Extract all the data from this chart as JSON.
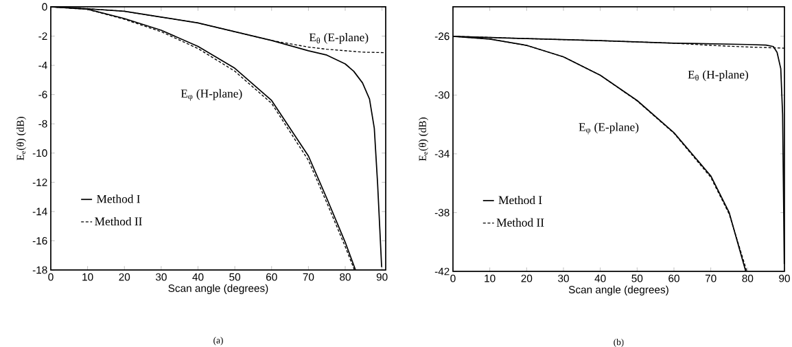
{
  "chart_data": [
    {
      "type": "line",
      "xlabel": "Scan angle (degrees)",
      "ylabel": "E$_{e}$(θ) (dB)",
      "xlim": [
        0,
        91
      ],
      "ylim": [
        -18,
        0
      ],
      "xticks": [
        0,
        10,
        20,
        30,
        40,
        50,
        60,
        70,
        80,
        90
      ],
      "yticks": [
        0,
        -2,
        -4,
        -6,
        -8,
        -10,
        -12,
        -14,
        -16,
        -18
      ],
      "grid": false,
      "legend": "bottom left",
      "marker": "none",
      "series": [
        {
          "name": "Method I",
          "color": "#000000",
          "line_style": "solid",
          "x": [
            0,
            10,
            20,
            30,
            40,
            50,
            60,
            70,
            75,
            80,
            82.3,
            84.7,
            86.6,
            87.9,
            88.8,
            89.4,
            89.9
          ],
          "values": [
            0,
            -0.13,
            -0.3,
            -0.7,
            -1.1,
            -1.7,
            -2.3,
            -3.0,
            -3.3,
            -3.9,
            -4.4,
            -5.2,
            -6.3,
            -8.3,
            -12.1,
            -15.2,
            -17.8
          ]
        },
        {
          "name": "Method II",
          "color": "#000000",
          "line_style": "dashed",
          "x": [
            0,
            10,
            20,
            30,
            40,
            50,
            60,
            70,
            75,
            80,
            85,
            90.8
          ],
          "values": [
            0,
            -0.13,
            -0.3,
            -0.7,
            -1.1,
            -1.7,
            -2.3,
            -2.75,
            -2.9,
            -3.0,
            -3.1,
            -3.13
          ]
        },
        {
          "color": "#000000",
          "line_style": "solid",
          "x": [
            0,
            10,
            20,
            30,
            40,
            50,
            60,
            70,
            75,
            80,
            82.8
          ],
          "values": [
            0,
            -0.16,
            -0.8,
            -1.6,
            -2.7,
            -4.2,
            -6.4,
            -10.2,
            -13.1,
            -16.1,
            -18
          ]
        },
        {
          "color": "#000000",
          "line_style": "dashed",
          "x": [
            0,
            10,
            20,
            30,
            40,
            50,
            60,
            70,
            75,
            80,
            82.5
          ],
          "values": [
            0,
            -0.17,
            -0.85,
            -1.7,
            -2.85,
            -4.4,
            -6.6,
            -10.5,
            -13.4,
            -16.4,
            -18
          ]
        }
      ],
      "annotations": [
        "E$_{θ}$ (E-plane)",
        "E$_{φ}$ (H-plane)",
        "(a)"
      ]
    },
    {
      "type": "line",
      "xlabel": "Scan angle (degrees)",
      "ylabel": "E$_{e}$(θ) (dB)",
      "xlim": [
        0,
        90
      ],
      "ylim": [
        -42,
        -24
      ],
      "xticks": [
        0,
        10,
        20,
        30,
        40,
        50,
        60,
        70,
        80,
        90
      ],
      "yticks": [
        -26,
        -30,
        -34,
        -38,
        -42
      ],
      "grid": false,
      "legend": "bottom left",
      "marker": "none",
      "series": [
        {
          "name": "Method I",
          "color": "#000000",
          "line_style": "solid",
          "x": [
            0,
            20,
            40,
            60,
            80,
            85,
            87,
            88,
            89,
            89.5,
            89.8,
            89.95
          ],
          "values": [
            -26,
            -26.16,
            -26.3,
            -26.47,
            -26.56,
            -26.6,
            -26.7,
            -27.1,
            -28.2,
            -31.3,
            -38,
            -41.5
          ]
        },
        {
          "name": "Method II",
          "color": "#000000",
          "line_style": "dashed",
          "x": [
            0,
            20,
            40,
            60,
            70,
            80,
            90
          ],
          "values": [
            -26,
            -26.16,
            -26.3,
            -26.47,
            -26.62,
            -26.73,
            -26.81
          ]
        },
        {
          "color": "#000000",
          "line_style": "solid",
          "x": [
            0,
            10,
            20,
            30,
            40,
            50,
            60,
            70,
            75,
            79.5
          ],
          "values": [
            -26,
            -26.19,
            -26.62,
            -27.4,
            -28.65,
            -30.37,
            -32.56,
            -35.5,
            -38.0,
            -42
          ]
        },
        {
          "color": "#000000",
          "line_style": "dashed",
          "x": [
            0,
            10,
            20,
            30,
            40,
            50,
            60,
            70,
            75,
            79.8
          ],
          "values": [
            -26,
            -26.19,
            -26.62,
            -27.4,
            -28.65,
            -30.4,
            -32.6,
            -35.6,
            -38.1,
            -42
          ]
        }
      ],
      "annotations": [
        "E$_{θ}$ (H-plane)",
        "E$_{φ}$ (E-plane)",
        "(b)"
      ]
    }
  ]
}
